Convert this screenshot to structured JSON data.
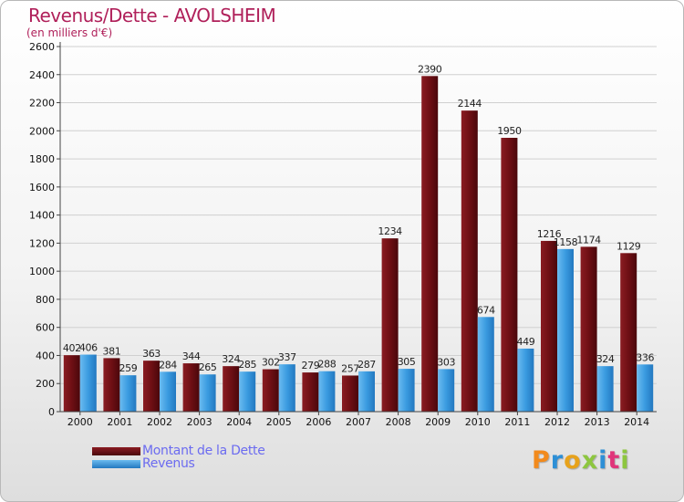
{
  "title": "Revenus/Dette - AVOLSHEIM",
  "subtitle": "(en milliers d'€)",
  "colors": {
    "dette": "#6e0f14",
    "revenus": "#3a9be0",
    "title": "#b0205a",
    "legend_text": "#6b6bf0"
  },
  "legend": {
    "dette_label": "Montant de la Dette",
    "revenus_label": "Revenus"
  },
  "logo": {
    "text": "Proxiti",
    "letter_colors": [
      "#f28a1c",
      "#2d8fd6",
      "#e7a21b",
      "#8dc63f",
      "#2d8fd6",
      "#e0357a",
      "#8dc63f"
    ]
  },
  "chart_data": {
    "type": "bar",
    "title": "Revenus/Dette - AVOLSHEIM",
    "ylabel": "(en milliers d'€)",
    "xlabel": "",
    "categories": [
      "2000",
      "2001",
      "2002",
      "2003",
      "2004",
      "2005",
      "2006",
      "2007",
      "2008",
      "2009",
      "2010",
      "2011",
      "2012",
      "2013",
      "2014"
    ],
    "series": [
      {
        "name": "Montant de la Dette",
        "values": [
          402,
          381,
          363,
          344,
          324,
          302,
          279,
          257,
          1234,
          2390,
          2144,
          1950,
          1216,
          1174,
          1129
        ]
      },
      {
        "name": "Revenus",
        "values": [
          406,
          259,
          284,
          265,
          285,
          337,
          288,
          287,
          305,
          303,
          674,
          449,
          1158,
          324,
          336
        ]
      }
    ],
    "ylim": [
      0,
      2600
    ],
    "yticks": [
      0,
      200,
      400,
      600,
      800,
      1000,
      1200,
      1400,
      1600,
      1800,
      2000,
      2200,
      2400,
      2600
    ],
    "grid": true,
    "legend_position": "bottom-left"
  }
}
